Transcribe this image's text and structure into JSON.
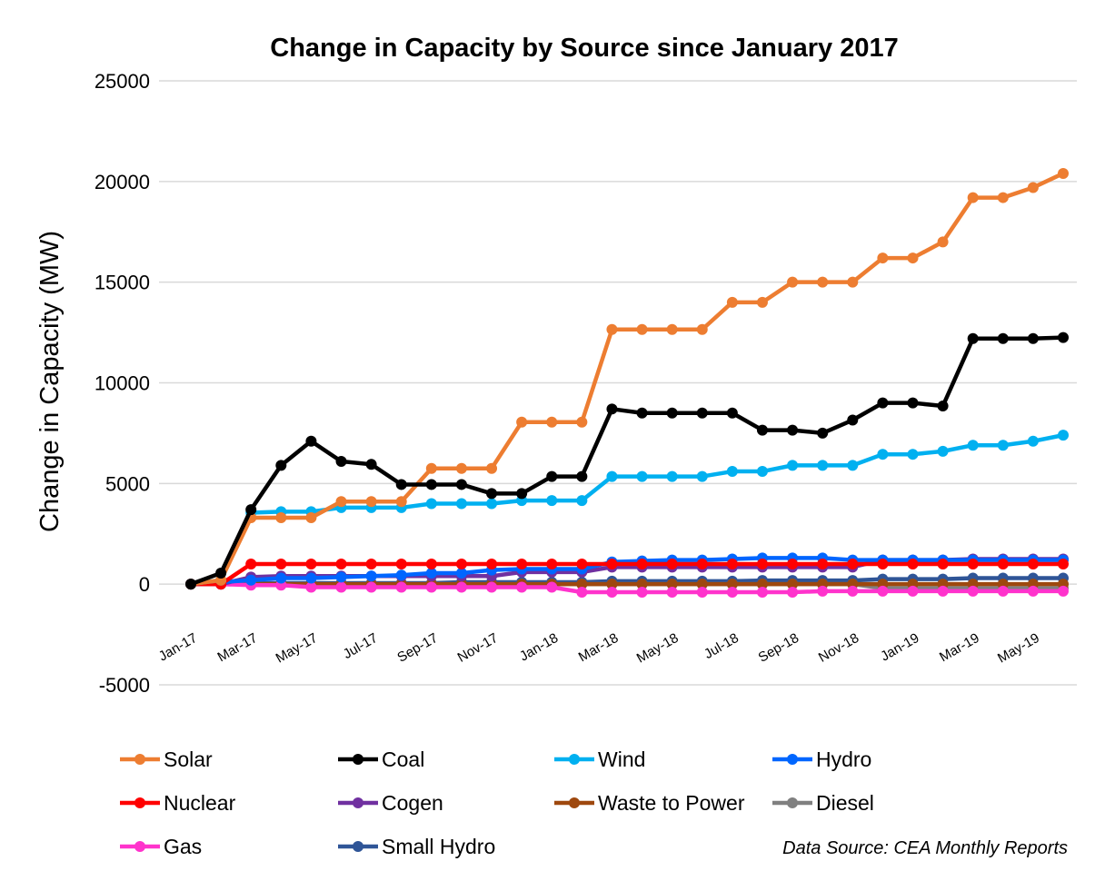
{
  "chart_data": {
    "type": "line",
    "title": "Change in Capacity by Source since January 2017",
    "xlabel": "",
    "ylabel": "Change in Capacity (MW)",
    "ylim": [
      -5000,
      25000
    ],
    "yticks": [
      25000,
      20000,
      15000,
      10000,
      5000,
      0,
      -5000
    ],
    "grid": true,
    "legend_position": "bottom",
    "x": [
      "Jan-17",
      "Feb-17",
      "Mar-17",
      "Apr-17",
      "May-17",
      "Jun-17",
      "Jul-17",
      "Aug-17",
      "Sep-17",
      "Oct-17",
      "Nov-17",
      "Dec-17",
      "Jan-18",
      "Feb-18",
      "Mar-18",
      "Apr-18",
      "May-18",
      "Jun-18",
      "Jul-18",
      "Aug-18",
      "Sep-18",
      "Oct-18",
      "Nov-18",
      "Dec-18",
      "Jan-19",
      "Feb-19",
      "Mar-19",
      "Apr-19",
      "May-19",
      "Jun-19"
    ],
    "xtick_labels": [
      "Jan-17",
      "Mar-17",
      "May-17",
      "Jul-17",
      "Sep-17",
      "Nov-17",
      "Jan-18",
      "Mar-18",
      "May-18",
      "Jul-18",
      "Sep-18",
      "Nov-18",
      "Jan-19",
      "Mar-19",
      "May-19"
    ],
    "series": [
      {
        "name": "Solar",
        "color": "#ED7D31",
        "values": [
          0,
          200,
          3300,
          3300,
          3300,
          4100,
          4100,
          4100,
          5750,
          5750,
          5750,
          8050,
          8050,
          8050,
          12650,
          12650,
          12650,
          12650,
          14000,
          14000,
          15000,
          15000,
          15000,
          16200,
          16200,
          17000,
          19200,
          19200,
          19700,
          20400
        ]
      },
      {
        "name": "Coal",
        "color": "#000000",
        "values": [
          0,
          550,
          3700,
          5900,
          7100,
          6100,
          5950,
          4950,
          4950,
          4950,
          4500,
          4500,
          5350,
          5350,
          8700,
          8500,
          8500,
          8500,
          8500,
          7650,
          7650,
          7500,
          8150,
          9000,
          9000,
          8850,
          12200,
          12200,
          12200,
          12250
        ]
      },
      {
        "name": "Wind",
        "color": "#00B0F0",
        "values": [
          0,
          200,
          3550,
          3600,
          3600,
          3800,
          3800,
          3800,
          4000,
          4000,
          4000,
          4150,
          4150,
          4150,
          5350,
          5350,
          5350,
          5350,
          5600,
          5600,
          5900,
          5900,
          5900,
          6450,
          6450,
          6600,
          6900,
          6900,
          7100,
          7400
        ]
      },
      {
        "name": "Hydro",
        "color": "#0066FF",
        "values": [
          0,
          100,
          200,
          300,
          300,
          350,
          400,
          450,
          550,
          550,
          700,
          750,
          750,
          750,
          1100,
          1150,
          1200,
          1200,
          1250,
          1300,
          1300,
          1300,
          1200,
          1200,
          1200,
          1200,
          1200,
          1200,
          1200,
          1200
        ]
      },
      {
        "name": "Nuclear",
        "color": "#FF0000",
        "values": [
          0,
          0,
          1000,
          1000,
          1000,
          1000,
          1000,
          1000,
          1000,
          1000,
          1000,
          1000,
          1000,
          1000,
          1000,
          1000,
          1000,
          1000,
          1000,
          1000,
          1000,
          1000,
          1000,
          1000,
          1000,
          1000,
          1000,
          1000,
          1000,
          1000
        ]
      },
      {
        "name": "Cogen",
        "color": "#7030A0",
        "values": [
          0,
          0,
          350,
          400,
          400,
          400,
          400,
          400,
          400,
          400,
          400,
          600,
          600,
          600,
          850,
          850,
          850,
          850,
          850,
          850,
          850,
          850,
          850,
          1200,
          1200,
          1200,
          1250,
          1250,
          1250,
          1250
        ]
      },
      {
        "name": "Waste to Power",
        "color": "#9E480E",
        "values": [
          0,
          0,
          0,
          0,
          0,
          0,
          0,
          0,
          0,
          0,
          0,
          0,
          0,
          0,
          0,
          0,
          0,
          0,
          0,
          0,
          0,
          0,
          0,
          0,
          0,
          0,
          0,
          0,
          0,
          0
        ]
      },
      {
        "name": "Diesel",
        "color": "#808080",
        "values": [
          0,
          0,
          0,
          0,
          0,
          0,
          0,
          0,
          0,
          0,
          0,
          0,
          0,
          0,
          0,
          0,
          0,
          0,
          0,
          0,
          0,
          0,
          0,
          -200,
          -200,
          -200,
          -200,
          -200,
          -200,
          -200
        ]
      },
      {
        "name": "Gas",
        "color": "#FF33CC",
        "values": [
          0,
          0,
          -50,
          -50,
          -150,
          -150,
          -150,
          -150,
          -150,
          -150,
          -150,
          -150,
          -150,
          -400,
          -400,
          -400,
          -400,
          -400,
          -400,
          -400,
          -400,
          -350,
          -350,
          -350,
          -350,
          -350,
          -350,
          -350,
          -350,
          -350
        ]
      },
      {
        "name": "Small Hydro",
        "color": "#2F5597",
        "values": [
          0,
          0,
          50,
          50,
          50,
          50,
          50,
          50,
          50,
          100,
          100,
          100,
          100,
          100,
          150,
          150,
          150,
          150,
          150,
          180,
          180,
          180,
          180,
          250,
          250,
          250,
          300,
          300,
          300,
          300
        ]
      }
    ],
    "annotation": "Data Source: CEA Monthly Reports"
  }
}
